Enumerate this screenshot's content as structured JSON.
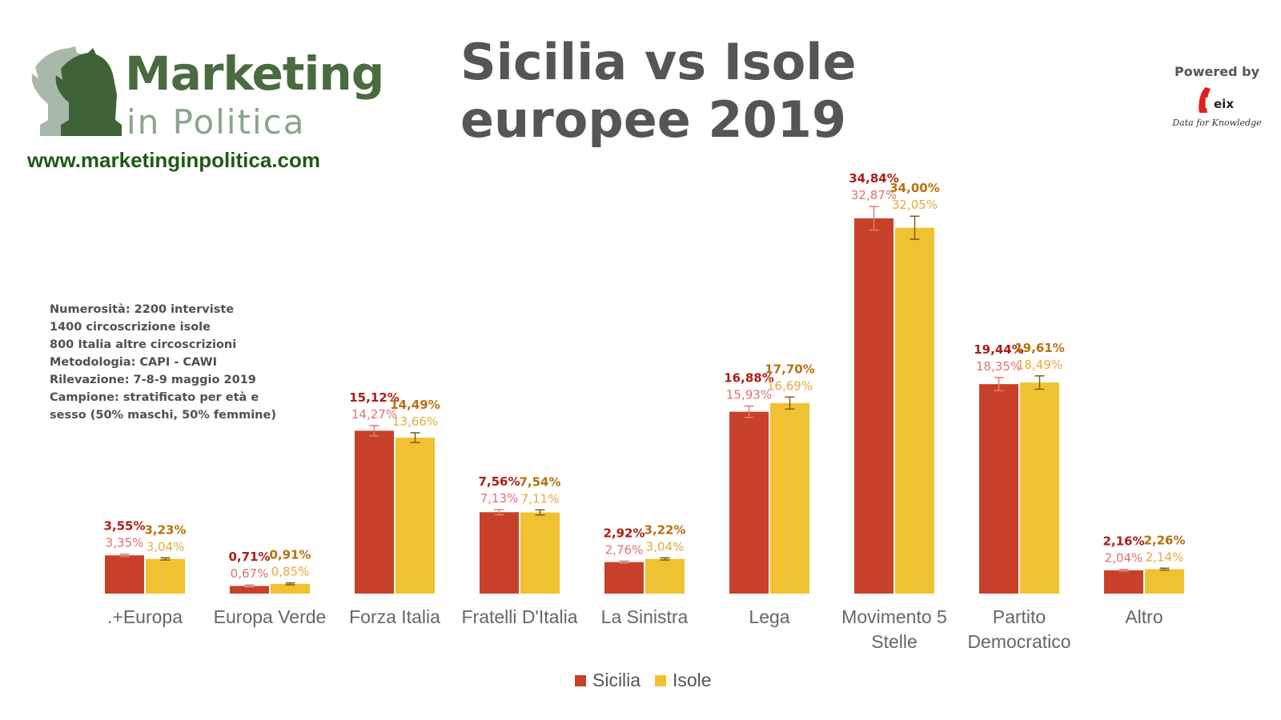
{
  "logo": {
    "title": "Marketing",
    "subtitle": "in Politica",
    "url": "www.marketinginpolitica.com"
  },
  "title_lines": [
    "Sicilia vs Isole",
    "europee 2019"
  ],
  "powered": {
    "label": "Powered by",
    "brand": "Keix",
    "tagline": "Data for Knowledge"
  },
  "notes": [
    "Numerosità: 2200 interviste",
    "1400 circoscrizione isole",
    "800 Italia altre circoscrizioni",
    "Metodologia: CAPI - CAWI",
    "Rilevazione: 7-8-9 maggio 2019",
    "Campione: stratificato per età e",
    "sesso (50% maschi, 50% femmine)"
  ],
  "colors": {
    "sicilia": "#c9402a",
    "isole": "#f0c232",
    "sicilia_label_dark": "#b01c16",
    "sicilia_label_light": "#e07070",
    "isole_label_dark": "#b8700c",
    "isole_label_light": "#e6a93c",
    "error_sicilia": "#d98070",
    "error_isole": "#7a6010"
  },
  "chart_data": {
    "type": "bar",
    "title": "Sicilia vs Isole europee 2019",
    "xlabel": "",
    "ylabel": "",
    "ylim": [
      0,
      36
    ],
    "grid": false,
    "legend_position": "bottom",
    "categories": [
      ".+Europa",
      "Europa Verde",
      "Forza Italia",
      "Fratelli D'Italia",
      "La Sinistra",
      "Lega",
      "Movimento 5 Stelle",
      "Partito Democratico",
      "Altro"
    ],
    "series": [
      {
        "name": "Sicilia",
        "values": [
          3.35,
          0.67,
          14.27,
          7.13,
          2.76,
          15.93,
          32.87,
          18.35,
          2.04
        ],
        "upper_labels": [
          "3,55%",
          "0,71%",
          "15,12%",
          "7,56%",
          "2,92%",
          "16,88%",
          "34,84%",
          "19,44%",
          "2,16%"
        ],
        "value_labels": [
          "3,35%",
          "0,67%",
          "14,27%",
          "7,13%",
          "2,76%",
          "15,93%",
          "32,87%",
          "18,35%",
          "2,04%"
        ]
      },
      {
        "name": "Isole",
        "values": [
          3.04,
          0.85,
          13.66,
          7.11,
          3.04,
          16.69,
          32.05,
          18.49,
          2.14
        ],
        "upper_labels": [
          "3,23%",
          "0,91%",
          "14,49%",
          "7,54%",
          "3,22%",
          "17,70%",
          "34,00%",
          "19,61%",
          "2,26%"
        ],
        "value_labels": [
          "3,04%",
          "0,85%",
          "13,66%",
          "7,11%",
          "3,04%",
          "16,69%",
          "32,05%",
          "18,49%",
          "2,14%"
        ]
      }
    ]
  }
}
